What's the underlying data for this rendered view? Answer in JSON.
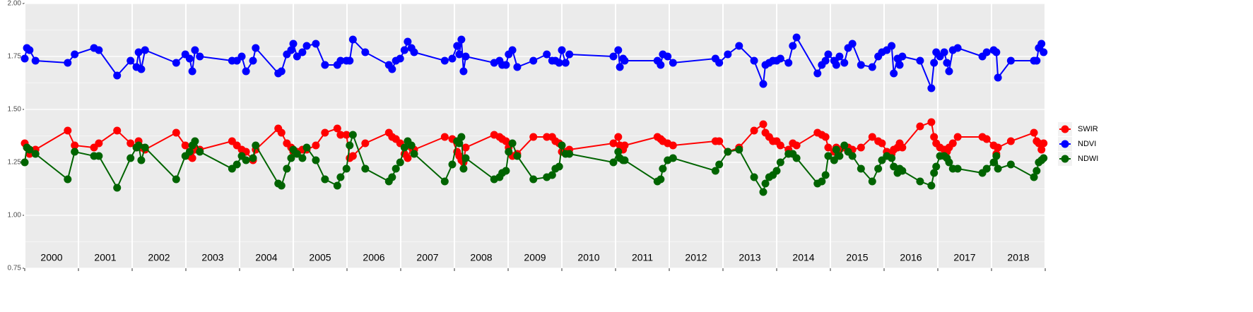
{
  "chart_data": {
    "type": "line",
    "x": [
      2000.0,
      2000.04,
      2000.09,
      2000.2,
      2000.8,
      2000.93,
      2001.29,
      2001.38,
      2001.72,
      2001.97,
      2002.08,
      2002.12,
      2002.17,
      2002.24,
      2002.82,
      2002.99,
      2003.07,
      2003.12,
      2003.17,
      2003.26,
      2003.86,
      2003.95,
      2004.04,
      2004.12,
      2004.25,
      2004.3,
      2004.72,
      2004.78,
      2004.88,
      2004.96,
      2005.0,
      2005.07,
      2005.17,
      2005.25,
      2005.42,
      2005.59,
      2005.82,
      2005.88,
      2005.99,
      2006.05,
      2006.11,
      2006.34,
      2006.78,
      2006.84,
      2006.91,
      2006.99,
      2007.07,
      2007.13,
      2007.2,
      2007.25,
      2007.82,
      2007.96,
      2008.05,
      2008.09,
      2008.13,
      2008.17,
      2008.21,
      2008.74,
      2008.84,
      2008.89,
      2008.96,
      2009.01,
      2009.08,
      2009.17,
      2009.47,
      2009.72,
      2009.82,
      2009.88,
      2009.95,
      2010.0,
      2010.07,
      2010.14,
      2010.96,
      2011.05,
      2011.08,
      2011.14,
      2011.17,
      2011.78,
      2011.84,
      2011.88,
      2011.97,
      2012.07,
      2012.86,
      2012.93,
      2013.09,
      2013.3,
      2013.58,
      2013.75,
      2013.79,
      2013.86,
      2013.93,
      2014.0,
      2014.07,
      2014.22,
      2014.3,
      2014.37,
      2014.76,
      2014.84,
      2014.91,
      2014.96,
      2015.07,
      2015.11,
      2015.17,
      2015.26,
      2015.33,
      2015.41,
      2015.57,
      2015.78,
      2015.89,
      2015.96,
      2016.05,
      2016.14,
      2016.18,
      2016.25,
      2016.29,
      2016.34,
      2016.67,
      2016.88,
      2016.93,
      2016.97,
      2017.04,
      2017.12,
      2017.17,
      2017.21,
      2017.28,
      2017.37,
      2017.83,
      2017.91,
      2018.04,
      2018.09,
      2018.12,
      2018.36,
      2018.79,
      2018.84,
      2018.88,
      2018.93,
      2018.97
    ],
    "series": [
      {
        "name": "SWIR",
        "color": "#ff0000",
        "values": [
          1.34,
          1.32,
          1.29,
          1.31,
          1.4,
          1.33,
          1.32,
          1.34,
          1.4,
          1.34,
          1.32,
          1.35,
          1.32,
          1.31,
          1.39,
          1.33,
          1.28,
          1.27,
          1.31,
          1.31,
          1.35,
          1.33,
          1.31,
          1.3,
          1.26,
          1.31,
          1.41,
          1.39,
          1.34,
          1.32,
          1.3,
          1.3,
          1.31,
          1.31,
          1.33,
          1.39,
          1.41,
          1.38,
          1.38,
          1.27,
          1.28,
          1.34,
          1.39,
          1.37,
          1.36,
          1.34,
          1.29,
          1.27,
          1.32,
          1.31,
          1.37,
          1.36,
          1.3,
          1.28,
          1.26,
          1.25,
          1.32,
          1.38,
          1.37,
          1.36,
          1.35,
          1.32,
          1.28,
          1.29,
          1.37,
          1.37,
          1.37,
          1.35,
          1.34,
          1.3,
          1.3,
          1.31,
          1.34,
          1.37,
          1.33,
          1.31,
          1.33,
          1.37,
          1.36,
          1.35,
          1.34,
          1.33,
          1.35,
          1.35,
          1.3,
          1.32,
          1.4,
          1.43,
          1.39,
          1.37,
          1.35,
          1.35,
          1.33,
          1.31,
          1.34,
          1.33,
          1.39,
          1.38,
          1.37,
          1.32,
          1.3,
          1.32,
          1.31,
          1.32,
          1.32,
          1.31,
          1.32,
          1.37,
          1.35,
          1.34,
          1.3,
          1.29,
          1.31,
          1.32,
          1.34,
          1.32,
          1.42,
          1.44,
          1.37,
          1.34,
          1.32,
          1.31,
          1.3,
          1.32,
          1.34,
          1.37,
          1.37,
          1.36,
          1.33,
          1.29,
          1.32,
          1.35,
          1.39,
          1.35,
          1.34,
          1.31,
          1.34
        ]
      },
      {
        "name": "NDVI",
        "color": "#0000ff",
        "values": [
          1.74,
          1.79,
          1.78,
          1.73,
          1.72,
          1.76,
          1.79,
          1.78,
          1.66,
          1.73,
          1.7,
          1.77,
          1.69,
          1.78,
          1.72,
          1.76,
          1.74,
          1.68,
          1.78,
          1.75,
          1.73,
          1.73,
          1.75,
          1.68,
          1.73,
          1.79,
          1.67,
          1.68,
          1.76,
          1.78,
          1.81,
          1.75,
          1.77,
          1.8,
          1.81,
          1.71,
          1.71,
          1.73,
          1.73,
          1.73,
          1.83,
          1.77,
          1.71,
          1.69,
          1.73,
          1.74,
          1.78,
          1.82,
          1.79,
          1.77,
          1.73,
          1.74,
          1.8,
          1.76,
          1.83,
          1.68,
          1.75,
          1.72,
          1.73,
          1.71,
          1.71,
          1.76,
          1.78,
          1.7,
          1.73,
          1.76,
          1.73,
          1.73,
          1.72,
          1.78,
          1.72,
          1.76,
          1.75,
          1.78,
          1.7,
          1.74,
          1.73,
          1.73,
          1.71,
          1.76,
          1.75,
          1.72,
          1.74,
          1.72,
          1.76,
          1.8,
          1.73,
          1.62,
          1.71,
          1.72,
          1.73,
          1.73,
          1.74,
          1.72,
          1.8,
          1.84,
          1.67,
          1.71,
          1.73,
          1.76,
          1.73,
          1.71,
          1.75,
          1.72,
          1.79,
          1.81,
          1.71,
          1.7,
          1.75,
          1.77,
          1.78,
          1.8,
          1.67,
          1.74,
          1.71,
          1.75,
          1.73,
          1.6,
          1.72,
          1.77,
          1.75,
          1.77,
          1.72,
          1.68,
          1.78,
          1.79,
          1.75,
          1.77,
          1.78,
          1.77,
          1.65,
          1.73,
          1.73,
          1.73,
          1.79,
          1.81,
          1.77
        ]
      },
      {
        "name": "NDWI",
        "color": "#006400",
        "values": [
          1.25,
          1.32,
          1.31,
          1.29,
          1.17,
          1.3,
          1.28,
          1.28,
          1.13,
          1.27,
          1.32,
          1.33,
          1.26,
          1.32,
          1.17,
          1.28,
          1.3,
          1.33,
          1.35,
          1.3,
          1.22,
          1.24,
          1.28,
          1.26,
          1.27,
          1.33,
          1.15,
          1.14,
          1.22,
          1.27,
          1.31,
          1.29,
          1.27,
          1.32,
          1.26,
          1.17,
          1.14,
          1.18,
          1.22,
          1.33,
          1.38,
          1.22,
          1.16,
          1.18,
          1.22,
          1.25,
          1.32,
          1.35,
          1.33,
          1.29,
          1.16,
          1.24,
          1.35,
          1.34,
          1.37,
          1.22,
          1.27,
          1.17,
          1.18,
          1.2,
          1.21,
          1.3,
          1.34,
          1.28,
          1.17,
          1.18,
          1.19,
          1.22,
          1.23,
          1.33,
          1.29,
          1.29,
          1.25,
          1.3,
          1.27,
          1.26,
          1.26,
          1.16,
          1.17,
          1.22,
          1.26,
          1.27,
          1.21,
          1.24,
          1.3,
          1.31,
          1.18,
          1.11,
          1.15,
          1.18,
          1.19,
          1.21,
          1.25,
          1.29,
          1.29,
          1.27,
          1.15,
          1.16,
          1.19,
          1.28,
          1.26,
          1.31,
          1.28,
          1.33,
          1.3,
          1.28,
          1.22,
          1.16,
          1.22,
          1.26,
          1.28,
          1.27,
          1.23,
          1.2,
          1.22,
          1.21,
          1.16,
          1.14,
          1.2,
          1.23,
          1.28,
          1.28,
          1.27,
          1.25,
          1.22,
          1.22,
          1.2,
          1.22,
          1.25,
          1.28,
          1.22,
          1.24,
          1.18,
          1.21,
          1.25,
          1.26,
          1.27
        ]
      }
    ],
    "xlim": [
      2000,
      2019
    ],
    "x_breaks": [
      2000,
      2001,
      2002,
      2003,
      2004,
      2005,
      2006,
      2007,
      2008,
      2009,
      2010,
      2011,
      2012,
      2013,
      2014,
      2015,
      2016,
      2017,
      2018,
      2019
    ],
    "xticks": [
      {
        "value": 2000.5,
        "label": "2000"
      },
      {
        "value": 2001.5,
        "label": "2001"
      },
      {
        "value": 2002.5,
        "label": "2002"
      },
      {
        "value": 2003.5,
        "label": "2003"
      },
      {
        "value": 2004.5,
        "label": "2004"
      },
      {
        "value": 2005.5,
        "label": "2005"
      },
      {
        "value": 2006.5,
        "label": "2006"
      },
      {
        "value": 2007.5,
        "label": "2007"
      },
      {
        "value": 2008.5,
        "label": "2008"
      },
      {
        "value": 2009.5,
        "label": "2009"
      },
      {
        "value": 2010.5,
        "label": "2010"
      },
      {
        "value": 2011.5,
        "label": "2011"
      },
      {
        "value": 2012.5,
        "label": "2012"
      },
      {
        "value": 2013.5,
        "label": "2013"
      },
      {
        "value": 2014.5,
        "label": "2014"
      },
      {
        "value": 2015.5,
        "label": "2015"
      },
      {
        "value": 2016.5,
        "label": "2016"
      },
      {
        "value": 2017.5,
        "label": "2017"
      },
      {
        "value": 2018.5,
        "label": "2018"
      }
    ],
    "ylim": [
      0.75,
      2.0
    ],
    "yticks": [
      0.75,
      {
        "value": 1.0,
        "label": "1.00"
      },
      1.25,
      {
        "value": 1.5,
        "label": "1.50"
      },
      1.75,
      {
        "value": 2.0,
        "label": "2.00"
      }
    ],
    "grid": true,
    "legend": "right"
  }
}
